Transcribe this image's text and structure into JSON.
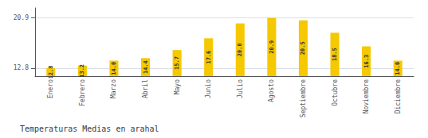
{
  "chart_data": {
    "type": "bar",
    "title": "Temperaturas Medias en arahal",
    "categories": [
      "Enero",
      "Febrero",
      "Marzo",
      "Abril",
      "Mayo",
      "Junio",
      "Julio",
      "Agosto",
      "Septiembre",
      "Octubre",
      "Noviembre",
      "Diciembre"
    ],
    "values": [
      12.8,
      13.2,
      14.0,
      14.4,
      15.7,
      17.6,
      20.0,
      20.9,
      20.5,
      18.5,
      16.3,
      14.0
    ],
    "value_labels": [
      "12.8",
      "13.2",
      "14.0",
      "14.4",
      "15.7",
      "17.6",
      "20.0",
      "20.9",
      "20.5",
      "18.5",
      "16.3",
      "14.0"
    ],
    "data_labels": true,
    "color": "#F5C800",
    "ylim": [
      11.5,
      22.5
    ],
    "yticks": [
      12.8,
      20.9
    ],
    "grid": true
  }
}
